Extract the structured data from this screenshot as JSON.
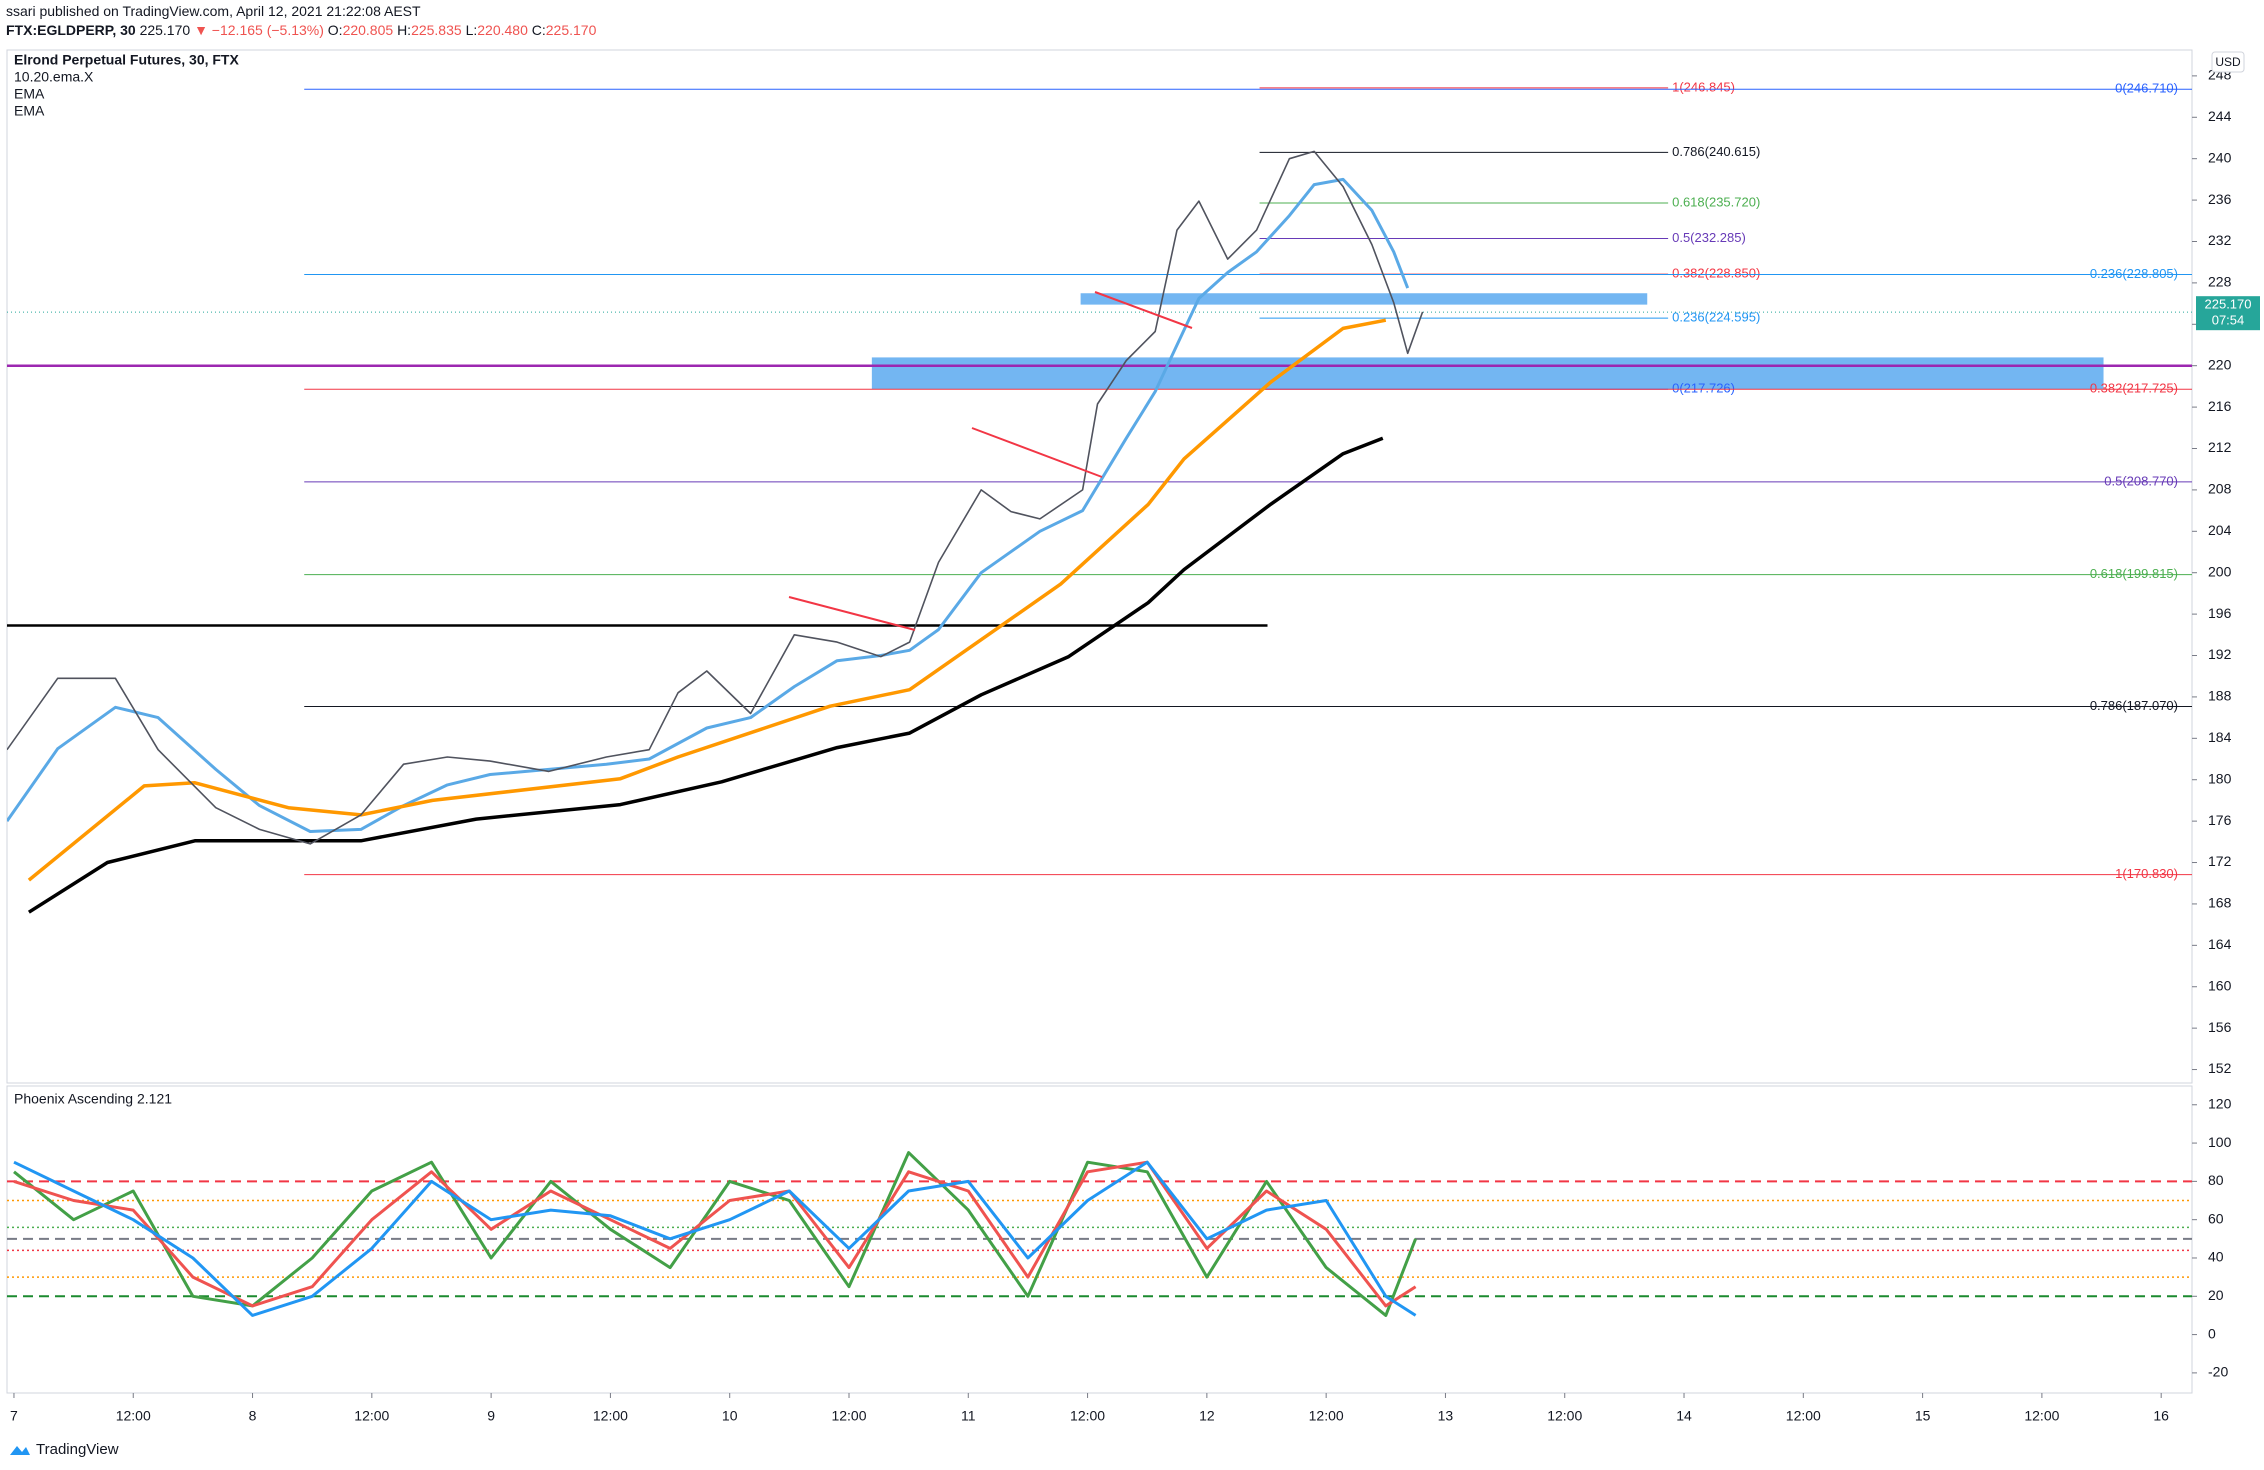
{
  "header": {
    "publisher": "ssari published on TradingView.com, April 12, 2021 21:22:08 AEST",
    "symbol": "FTX:EGLDPERP, 30",
    "last": "225.170",
    "change": "▼ −12.165 (−5.13%)",
    "open_label": "O:",
    "open": "220.805",
    "high_label": "H:",
    "high": "225.835",
    "low_label": "L:",
    "low": "220.480",
    "close_label": "C:",
    "close": "225.170"
  },
  "footer": {
    "brand": "TradingView"
  },
  "chart_data": [
    {
      "type": "line",
      "title": "Elrond Perpetual Futures, 30, FTX",
      "grid": false,
      "currency": "USD",
      "color": "#50535e",
      "x": [
        -0.7,
        4.4,
        10.2,
        14.5,
        20.3,
        24.7,
        29.8,
        34.9,
        39.2,
        43.6,
        47.9,
        53.8,
        59.6,
        63.9,
        66.8,
        69.7,
        74.1,
        78.5,
        82.8,
        87.2,
        90.1,
        93.0,
        97.3,
        100.3,
        103.2,
        107.5,
        109.0,
        111.9,
        114.8,
        117.0,
        119.2,
        122.1,
        125.0,
        128.3,
        130.8,
        133.7,
        136.6,
        138.8,
        140.2,
        141.7
      ],
      "values": [
        182.9,
        189.8,
        189.8,
        182.9,
        177.3,
        175.2,
        173.8,
        176.6,
        181.5,
        182.2,
        181.8,
        180.8,
        182.2,
        182.9,
        188.4,
        190.5,
        186.4,
        194.0,
        193.3,
        191.9,
        193.3,
        201.0,
        208.0,
        205.9,
        205.2,
        208.0,
        216.3,
        220.5,
        223.3,
        233.1,
        235.9,
        230.3,
        233.1,
        240.0,
        240.7,
        237.3,
        231.7,
        226.1,
        221.2,
        225.2
      ],
      "series": [
        {
          "name": "10.20.ema.X",
          "color": "#5aa9e6",
          "x": [
            -0.7,
            4.4,
            10.2,
            14.5,
            20.3,
            24.7,
            29.8,
            34.9,
            39.2,
            43.6,
            47.9,
            53.8,
            59.6,
            63.9,
            69.7,
            74.1,
            78.5,
            82.8,
            87.2,
            90.1,
            93.0,
            97.3,
            103.2,
            107.5,
            111.9,
            114.8,
            117.0,
            119.2,
            122.1,
            125.0,
            128.3,
            130.8,
            133.7,
            136.6,
            138.8,
            140.2
          ],
          "values": [
            176.0,
            183.0,
            187.0,
            186.0,
            181.0,
            177.5,
            175.0,
            175.2,
            177.5,
            179.5,
            180.5,
            181.0,
            181.5,
            182.0,
            185.0,
            186.0,
            189.0,
            191.5,
            192.0,
            192.5,
            194.5,
            200.0,
            204.0,
            206.0,
            213.0,
            217.5,
            222.0,
            226.5,
            229.0,
            231.0,
            234.5,
            237.5,
            238.0,
            235.0,
            231.0,
            227.5
          ]
        },
        {
          "name": "EMA",
          "color": "#ff9800",
          "x": [
            1.5,
            13.1,
            18.2,
            27.6,
            34.9,
            42.1,
            61.0,
            66.8,
            82.1,
            90.1,
            105.3,
            114.1,
            117.7,
            126.4,
            133.7,
            138.0
          ],
          "values": [
            170.3,
            179.4,
            179.7,
            177.3,
            176.6,
            178.0,
            180.1,
            182.2,
            187.1,
            188.7,
            198.9,
            206.6,
            211.0,
            218.4,
            223.6,
            224.4
          ]
        },
        {
          "name": "EMA",
          "color": "#000000",
          "x": [
            1.5,
            9.4,
            18.2,
            34.9,
            46.5,
            61.0,
            71.2,
            82.8,
            90.1,
            97.3,
            106.1,
            114.1,
            117.7,
            126.4,
            133.7,
            137.7
          ],
          "values": [
            167.2,
            172.0,
            174.1,
            174.1,
            176.2,
            177.6,
            179.8,
            183.1,
            184.5,
            188.2,
            191.9,
            197.1,
            200.3,
            206.6,
            211.5,
            213.0
          ]
        }
      ],
      "xlim": [
        -0.7,
        219.1
      ],
      "ylim": [
        150.7,
        250.5
      ],
      "yticks": [
        152,
        156,
        160,
        164,
        168,
        172,
        176,
        180,
        184,
        188,
        192,
        196,
        200,
        204,
        208,
        212,
        216,
        220,
        224,
        228,
        232,
        236,
        240,
        244,
        248
      ],
      "xticks": [
        {
          "value": 0,
          "label": "7"
        },
        {
          "value": 12,
          "label": "12:00"
        },
        {
          "value": 24,
          "label": "8"
        },
        {
          "value": 36,
          "label": "12:00"
        },
        {
          "value": 48,
          "label": "9"
        },
        {
          "value": 60,
          "label": "12:00"
        },
        {
          "value": 72,
          "label": "10"
        },
        {
          "value": 84,
          "label": "12:00"
        },
        {
          "value": 96,
          "label": "11"
        },
        {
          "value": 108,
          "label": "12:00"
        },
        {
          "value": 120,
          "label": "12"
        },
        {
          "value": 132,
          "label": "12:00"
        },
        {
          "value": 144,
          "label": "13"
        },
        {
          "value": 156,
          "label": "12:00"
        },
        {
          "value": 168,
          "label": "14"
        },
        {
          "value": 180,
          "label": "12:00"
        },
        {
          "value": 192,
          "label": "15"
        },
        {
          "value": 204,
          "label": "12:00"
        },
        {
          "value": 216,
          "label": "16"
        }
      ],
      "last_price": {
        "value": 225.17,
        "label": "225.170",
        "countdown": "07:54",
        "color": "#26a69a"
      },
      "zones": [
        {
          "x_range": [
            107.3,
            164.3
          ],
          "range": [
            225.9,
            227.0
          ],
          "color": "#5aa9f0"
        },
        {
          "x_range": [
            86.3,
            210.2
          ],
          "range": [
            217.7,
            220.8
          ],
          "color": "#5aa9f0"
        }
      ],
      "horizontal_lines": [
        {
          "value": 194.9,
          "x_range": [
            -0.7,
            126.1
          ],
          "color": "#000000"
        },
        {
          "value": 220.0,
          "x_range": [
            -0.7,
            219.1
          ],
          "color": "#9c27b0"
        }
      ],
      "fib_levels": [
        {
          "x_range": [
            125.3,
            166.4
          ],
          "levels": [
            {
              "value": 246.845,
              "label": "1(246.845)",
              "color": "#f23645"
            },
            {
              "value": 240.615,
              "label": "0.786(240.615)",
              "color": "#131722"
            },
            {
              "value": 235.72,
              "label": "0.618(235.720)",
              "color": "#4caf50"
            },
            {
              "value": 232.285,
              "label": "0.5(232.285)",
              "color": "#673ab7"
            },
            {
              "value": 228.85,
              "label": "0.382(228.850)",
              "color": "#f23645"
            },
            {
              "value": 224.595,
              "label": "0.236(224.595)",
              "color": "#2196f3"
            },
            {
              "value": 217.726,
              "label": "0(217.726)",
              "color": "#2962ff"
            }
          ]
        },
        {
          "x_range": [
            29.2,
            219.1
          ],
          "levels": [
            {
              "value": 246.71,
              "label": "0(246.710)",
              "color": "#2962ff"
            },
            {
              "value": 228.805,
              "label": "0.236(228.805)",
              "color": "#2196f3"
            },
            {
              "value": 217.725,
              "label": "0.382(217.725)",
              "color": "#f23645"
            },
            {
              "value": 208.77,
              "label": "0.5(208.770)",
              "color": "#673ab7"
            },
            {
              "value": 199.815,
              "label": "0.618(199.815)",
              "color": "#4caf50"
            },
            {
              "value": 187.07,
              "label": "0.786(187.070)",
              "color": "#131722"
            },
            {
              "value": 170.83,
              "label": "1(170.830)",
              "color": "#f23645"
            }
          ]
        }
      ]
    },
    {
      "type": "oscillator",
      "title": "Phoenix Ascending 2.121",
      "xlim": [
        -0.7,
        219.1
      ],
      "ylim": [
        -30.5,
        129.8
      ],
      "yticks": [
        -20,
        0,
        20,
        40,
        60,
        80,
        100,
        120
      ],
      "lines": [
        {
          "color": "#43a047",
          "x": [
            0,
            6,
            12,
            18,
            24,
            30,
            36,
            42,
            48,
            54,
            60,
            66,
            72,
            78,
            84,
            90,
            96,
            102,
            108,
            114,
            120,
            126,
            132,
            138,
            141
          ],
          "values": [
            85,
            60,
            75,
            20,
            15,
            40,
            75,
            90,
            40,
            80,
            55,
            35,
            80,
            70,
            25,
            95,
            65,
            20,
            90,
            85,
            30,
            80,
            35,
            10,
            50
          ]
        },
        {
          "color": "#ef5350",
          "x": [
            0,
            6,
            12,
            18,
            24,
            30,
            36,
            42,
            48,
            54,
            60,
            66,
            72,
            78,
            84,
            90,
            96,
            102,
            108,
            114,
            120,
            126,
            132,
            138,
            141
          ],
          "values": [
            80,
            70,
            65,
            30,
            15,
            25,
            60,
            85,
            55,
            75,
            60,
            45,
            70,
            75,
            35,
            85,
            75,
            30,
            85,
            90,
            45,
            75,
            55,
            15,
            25
          ]
        },
        {
          "color": "#2196f3",
          "x": [
            0,
            6,
            12,
            18,
            24,
            30,
            36,
            42,
            48,
            54,
            60,
            66,
            72,
            78,
            84,
            90,
            96,
            102,
            108,
            114,
            120,
            126,
            132,
            138,
            141
          ],
          "values": [
            90,
            75,
            60,
            40,
            10,
            20,
            45,
            80,
            60,
            65,
            62,
            50,
            60,
            75,
            45,
            75,
            80,
            40,
            70,
            90,
            50,
            65,
            70,
            20,
            10
          ]
        }
      ],
      "levels": [
        {
          "value": 80,
          "color": "#f23645",
          "style": "dashed"
        },
        {
          "value": 70,
          "color": "#ff9800",
          "style": "dotted"
        },
        {
          "value": 56,
          "color": "#4caf50",
          "style": "dotted"
        },
        {
          "value": 50,
          "color": "#787b86",
          "style": "dashed"
        },
        {
          "value": 44,
          "color": "#f23645",
          "style": "dotted"
        },
        {
          "value": 30,
          "color": "#ff9800",
          "style": "dotted"
        },
        {
          "value": 20,
          "color": "#1b8a2f",
          "style": "dashed"
        }
      ]
    }
  ]
}
